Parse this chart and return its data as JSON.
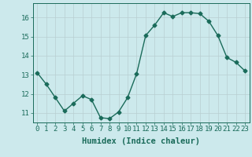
{
  "x": [
    0,
    1,
    2,
    3,
    4,
    5,
    6,
    7,
    8,
    9,
    10,
    11,
    12,
    13,
    14,
    15,
    16,
    17,
    18,
    19,
    20,
    21,
    22,
    23
  ],
  "y": [
    13.1,
    12.5,
    11.8,
    11.1,
    11.5,
    11.9,
    11.7,
    10.75,
    10.7,
    11.05,
    11.8,
    13.05,
    15.05,
    15.6,
    16.25,
    16.05,
    16.25,
    16.25,
    16.2,
    15.8,
    15.05,
    13.9,
    13.65,
    13.2
  ],
  "line_color": "#1a6b5a",
  "bg_color": "#cce9ec",
  "grid_color": "#b8cfd1",
  "xlabel": "Humidex (Indice chaleur)",
  "ylim": [
    10.5,
    16.75
  ],
  "xlim": [
    -0.5,
    23.5
  ],
  "yticks": [
    11,
    12,
    13,
    14,
    15,
    16
  ],
  "xticks": [
    0,
    1,
    2,
    3,
    4,
    5,
    6,
    7,
    8,
    9,
    10,
    11,
    12,
    13,
    14,
    15,
    16,
    17,
    18,
    19,
    20,
    21,
    22,
    23
  ],
  "marker": "D",
  "markersize": 2.5,
  "linewidth": 1.0,
  "fontsize_ticks": 6.5,
  "fontsize_label": 7.5
}
